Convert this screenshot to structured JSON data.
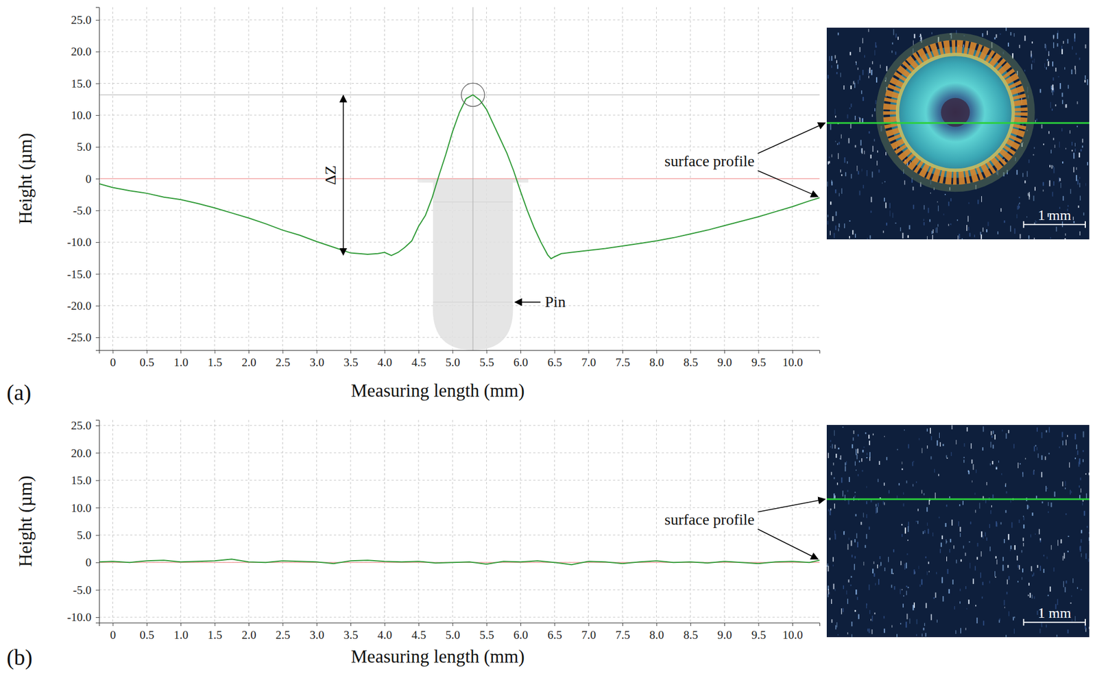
{
  "chart_data": [
    {
      "type": "line",
      "panel": "(a)",
      "x_label": "Measuring length (mm)",
      "y_label": "Height (µm)",
      "color": "#2f9a36",
      "grid": true,
      "reference_line": 0,
      "xlim": [
        -0.2,
        10.4
      ],
      "ylim": [
        -27,
        27
      ],
      "xticks": [
        0,
        0.5,
        {
          "value": 1,
          "label": "1.0"
        },
        1.5,
        {
          "value": 2,
          "label": "2.0"
        },
        2.5,
        {
          "value": 3,
          "label": "3.0"
        },
        3.5,
        {
          "value": 4,
          "label": "4.0"
        },
        4.5,
        {
          "value": 5,
          "label": "5.0"
        },
        5.5,
        {
          "value": 6,
          "label": "6.0"
        },
        6.5,
        {
          "value": 7,
          "label": "7.0"
        },
        7.5,
        {
          "value": 8,
          "label": "8.0"
        },
        8.5,
        {
          "value": 9,
          "label": "9.0"
        },
        9.5,
        {
          "value": 10,
          "label": "10.0"
        }
      ],
      "yticks": [
        {
          "value": 25,
          "label": "25.0"
        },
        {
          "value": 20,
          "label": "20.0"
        },
        {
          "value": 15,
          "label": "15.0"
        },
        {
          "value": 10,
          "label": "10.0"
        },
        {
          "value": 5,
          "label": "5.0"
        },
        0,
        {
          "value": -5,
          "label": "-5.0"
        },
        {
          "value": -10,
          "label": "-10.0"
        },
        {
          "value": -15,
          "label": "-15.0"
        },
        {
          "value": -20,
          "label": "-20.0"
        },
        {
          "value": -25,
          "label": "-25.0"
        }
      ],
      "x": [
        -0.2,
        0,
        0.25,
        0.5,
        0.75,
        1.0,
        1.25,
        1.5,
        1.75,
        2.0,
        2.25,
        2.5,
        2.75,
        3.0,
        3.25,
        3.5,
        3.75,
        3.9,
        4.0,
        4.1,
        4.2,
        4.3,
        4.4,
        4.5,
        4.6,
        4.7,
        4.8,
        4.9,
        5.0,
        5.1,
        5.2,
        5.3,
        5.4,
        5.5,
        5.6,
        5.7,
        5.8,
        5.9,
        6.0,
        6.1,
        6.2,
        6.3,
        6.4,
        6.45,
        6.5,
        6.6,
        6.75,
        7.0,
        7.25,
        7.5,
        7.75,
        8.0,
        8.25,
        8.5,
        8.75,
        9.0,
        9.25,
        9.5,
        9.75,
        10.0,
        10.25,
        10.4
      ],
      "values": [
        -0.8,
        -1.4,
        -1.9,
        -2.3,
        -2.9,
        -3.3,
        -3.9,
        -4.6,
        -5.4,
        -6.2,
        -7.1,
        -8.1,
        -8.9,
        -9.9,
        -10.8,
        -11.7,
        -11.9,
        -11.8,
        -11.6,
        -12.1,
        -11.6,
        -10.8,
        -9.8,
        -7.5,
        -5.8,
        -3.0,
        0.5,
        3.8,
        7.4,
        10.4,
        12.6,
        13.2,
        12.4,
        10.9,
        8.6,
        6.3,
        4.0,
        1.2,
        -2.0,
        -5.0,
        -7.7,
        -10.0,
        -12.0,
        -12.6,
        -12.3,
        -11.8,
        -11.6,
        -11.3,
        -11.0,
        -10.6,
        -10.2,
        -9.8,
        -9.3,
        -8.7,
        -8.1,
        -7.4,
        -6.7,
        -6.0,
        -5.2,
        -4.4,
        -3.5,
        -3.0
      ],
      "annotations": {
        "delta_z": "ΔZ",
        "pin": "Pin",
        "surface_profile": "surface profile",
        "scale_bar": "1 mm"
      }
    },
    {
      "type": "line",
      "panel": "(b)",
      "x_label": "Measuring length (mm)",
      "y_label": "Height (µm)",
      "color": "#2f9a36",
      "grid": true,
      "reference_line": 0,
      "xlim": [
        -0.2,
        10.4
      ],
      "ylim": [
        -11,
        26
      ],
      "xticks": [
        0,
        0.5,
        {
          "value": 1,
          "label": "1.0"
        },
        1.5,
        {
          "value": 2,
          "label": "2.0"
        },
        2.5,
        {
          "value": 3,
          "label": "3.0"
        },
        3.5,
        {
          "value": 4,
          "label": "4.0"
        },
        4.5,
        {
          "value": 5,
          "label": "5.0"
        },
        5.5,
        {
          "value": 6,
          "label": "6.0"
        },
        6.5,
        {
          "value": 7,
          "label": "7.0"
        },
        7.5,
        {
          "value": 8,
          "label": "8.0"
        },
        8.5,
        {
          "value": 9,
          "label": "9.0"
        },
        9.5,
        {
          "value": 10,
          "label": "10.0"
        }
      ],
      "yticks": [
        {
          "value": 25,
          "label": "25.0"
        },
        {
          "value": 20,
          "label": "20.0"
        },
        {
          "value": 15,
          "label": "15.0"
        },
        {
          "value": 10,
          "label": "10.0"
        },
        {
          "value": 5,
          "label": "5.0"
        },
        0,
        {
          "value": -5,
          "label": "-5.0"
        },
        {
          "value": -10,
          "label": "-10.0"
        }
      ],
      "x": [
        -0.2,
        0,
        0.25,
        0.5,
        0.75,
        1,
        1.25,
        1.5,
        1.75,
        2,
        2.25,
        2.5,
        2.75,
        3,
        3.25,
        3.5,
        3.75,
        4,
        4.25,
        4.5,
        4.75,
        5,
        5.25,
        5.5,
        5.75,
        6,
        6.25,
        6.5,
        6.75,
        7,
        7.25,
        7.5,
        7.75,
        8,
        8.25,
        8.5,
        8.75,
        9,
        9.25,
        9.5,
        9.75,
        10,
        10.25,
        10.4
      ],
      "values": [
        0.1,
        0.2,
        0.0,
        0.3,
        0.4,
        0.1,
        0.2,
        0.3,
        0.6,
        0.1,
        0.0,
        0.3,
        0.2,
        0.1,
        -0.2,
        0.3,
        0.4,
        0.2,
        0.1,
        0.2,
        -0.1,
        0.0,
        0.1,
        -0.3,
        0.2,
        0.1,
        0.3,
        0.0,
        -0.4,
        0.2,
        0.1,
        -0.2,
        0.1,
        0.3,
        0.0,
        0.1,
        -0.1,
        0.2,
        0.0,
        -0.2,
        0.1,
        0.2,
        0.0,
        0.4
      ],
      "annotations": {
        "surface_profile": "surface profile",
        "scale_bar": "1 mm"
      }
    }
  ]
}
